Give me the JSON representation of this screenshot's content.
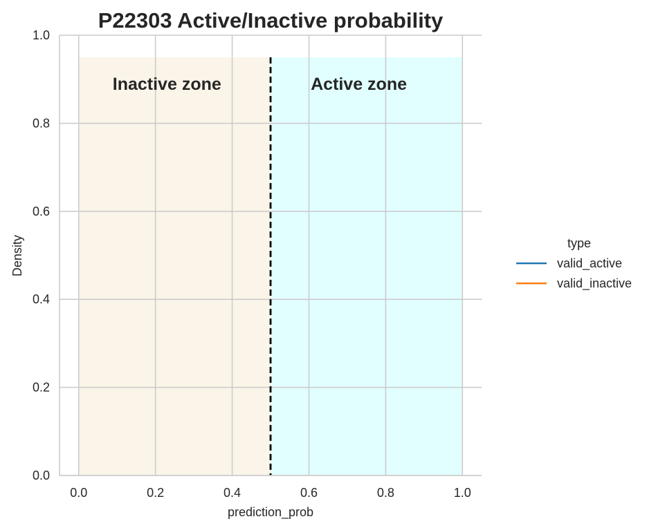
{
  "chart_data": {
    "type": "line",
    "title": "P22303  Active/Inactive probability",
    "xlabel": "prediction_prob",
    "ylabel": "Density",
    "xlim": [
      -0.05,
      1.05
    ],
    "ylim": [
      0,
      1.0
    ],
    "xticks": [
      "0.0",
      "0.2",
      "0.4",
      "0.6",
      "0.8",
      "1.0"
    ],
    "yticks": [
      "0.0",
      "0.2",
      "0.4",
      "0.6",
      "0.8",
      "1.0"
    ],
    "xtick_values": [
      0.0,
      0.2,
      0.4,
      0.6,
      0.8,
      1.0
    ],
    "ytick_values": [
      0.0,
      0.2,
      0.4,
      0.6,
      0.8,
      1.0
    ],
    "grid": true,
    "threshold": 0.5,
    "zones": [
      {
        "label": "Inactive zone",
        "x": [
          0.0,
          0.5
        ],
        "y": [
          0.0,
          0.95
        ],
        "color": "#fbf4e8",
        "label_x": 0.23,
        "label_y": 0.89
      },
      {
        "label": "Active zone",
        "x": [
          0.5,
          1.0
        ],
        "y": [
          0.0,
          0.95
        ],
        "color": "#e2ffff",
        "label_x": 0.73,
        "label_y": 0.89
      }
    ],
    "legend": {
      "title": "type",
      "placement": "right",
      "entries": [
        {
          "name": "valid_active",
          "color": "#1f77b4"
        },
        {
          "name": "valid_inactive",
          "color": "#ff7f0e"
        }
      ]
    },
    "series": [
      {
        "name": "valid_active",
        "values": []
      },
      {
        "name": "valid_inactive",
        "values": []
      }
    ]
  }
}
